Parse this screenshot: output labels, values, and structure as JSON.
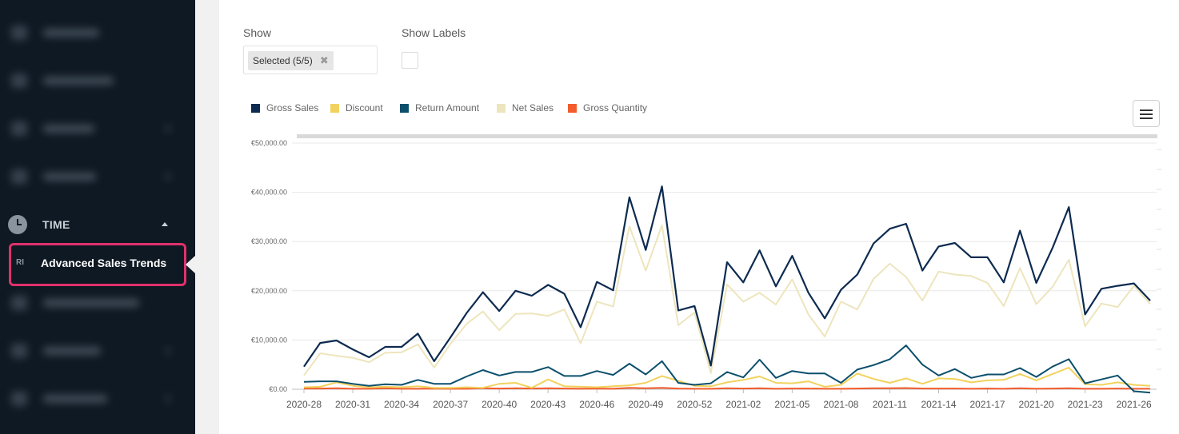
{
  "sidebar": {
    "section": {
      "label": "TIME",
      "icon": "clock-icon"
    },
    "active_item": {
      "abbr": "RI",
      "label": "Advanced Sales Trends"
    }
  },
  "filters": {
    "show_label": "Show",
    "show_value": "Selected (5/5)",
    "show_labels_label": "Show Labels",
    "show_labels_checked": false
  },
  "chart_data": {
    "type": "line",
    "legend_placement": "top-left",
    "y_ticks": [
      "€0.00",
      "€10,000.00",
      "€20,000.00",
      "€30,000.00",
      "€40,000.00",
      "€50,000.00"
    ],
    "ylim": [
      0,
      50000
    ],
    "x_ticks": [
      "2020-28",
      "2020-31",
      "2020-34",
      "2020-37",
      "2020-40",
      "2020-43",
      "2020-46",
      "2020-49",
      "2020-52",
      "2021-02",
      "2021-05",
      "2021-08",
      "2021-11",
      "2021-14",
      "2021-17",
      "2021-20",
      "2021-23",
      "2021-26"
    ],
    "series": [
      {
        "name": "Gross Sales",
        "color": "#0d2b50",
        "values": [
          4600,
          9400,
          9900,
          8100,
          6500,
          8600,
          8600,
          11300,
          5700,
          10500,
          15500,
          19700,
          15900,
          20000,
          19000,
          21200,
          19400,
          12600,
          21800,
          20100,
          39000,
          28300,
          41200,
          16000,
          16900,
          4800,
          25800,
          21700,
          28200,
          20900,
          27100,
          19600,
          14400,
          20200,
          23300,
          29600,
          32600,
          33600,
          24100,
          29000,
          29700,
          26800,
          26800,
          21700,
          32200,
          21600,
          28700,
          37000,
          15200,
          20400,
          21000,
          21500,
          18000
        ]
      },
      {
        "name": "Discount",
        "color": "#f2d25e",
        "values": [
          400,
          500,
          1400,
          700,
          400,
          500,
          400,
          600,
          300,
          300,
          400,
          300,
          1100,
          1300,
          300,
          2000,
          600,
          500,
          400,
          600,
          800,
          1300,
          2700,
          1700,
          700,
          600,
          1400,
          1900,
          2600,
          1300,
          1200,
          1600,
          500,
          900,
          3200,
          2100,
          1300,
          2200,
          1100,
          2200,
          2100,
          1400,
          1800,
          1900,
          3100,
          1800,
          3100,
          4400,
          1000,
          900,
          1400,
          900,
          700
        ]
      },
      {
        "name": "Return Amount",
        "color": "#0b4f6c",
        "values": [
          1500,
          1600,
          1600,
          1100,
          700,
          1000,
          900,
          1900,
          1100,
          1100,
          2600,
          3900,
          2800,
          3500,
          3500,
          4500,
          2700,
          2700,
          3700,
          2900,
          5200,
          3000,
          5700,
          1300,
          900,
          1200,
          3500,
          2400,
          6000,
          2300,
          3700,
          3200,
          3200,
          1300,
          4000,
          4900,
          6100,
          8900,
          5000,
          2800,
          4100,
          2300,
          3000,
          3000,
          4300,
          2500,
          4600,
          6100,
          1200,
          2000,
          2800,
          -400,
          -700
        ]
      },
      {
        "name": "Net Sales",
        "color": "#ede5bd",
        "values": [
          2800,
          7300,
          6800,
          6400,
          5500,
          7400,
          7500,
          9100,
          4400,
          9200,
          13300,
          15800,
          12000,
          15300,
          15400,
          14900,
          16200,
          9300,
          17800,
          16800,
          33100,
          24100,
          33300,
          13000,
          15600,
          3300,
          21300,
          17800,
          19600,
          17200,
          22300,
          15200,
          10700,
          17800,
          16200,
          22400,
          25500,
          22800,
          18000,
          23900,
          23300,
          23000,
          21600,
          16900,
          24600,
          17300,
          20800,
          26300,
          12800,
          17400,
          16700,
          21000,
          17300
        ]
      },
      {
        "name": "Gross Quantity",
        "color": "#f25c2c",
        "values": [
          150,
          150,
          200,
          100,
          100,
          200,
          100,
          100,
          150,
          100,
          100,
          200,
          150,
          200,
          150,
          200,
          150,
          100,
          150,
          100,
          300,
          200,
          300,
          150,
          100,
          100,
          200,
          150,
          200,
          100,
          150,
          150,
          100,
          100,
          150,
          200,
          200,
          250,
          150,
          150,
          150,
          100,
          150,
          100,
          200,
          100,
          150,
          200,
          100,
          100,
          150,
          100,
          100
        ]
      }
    ]
  }
}
